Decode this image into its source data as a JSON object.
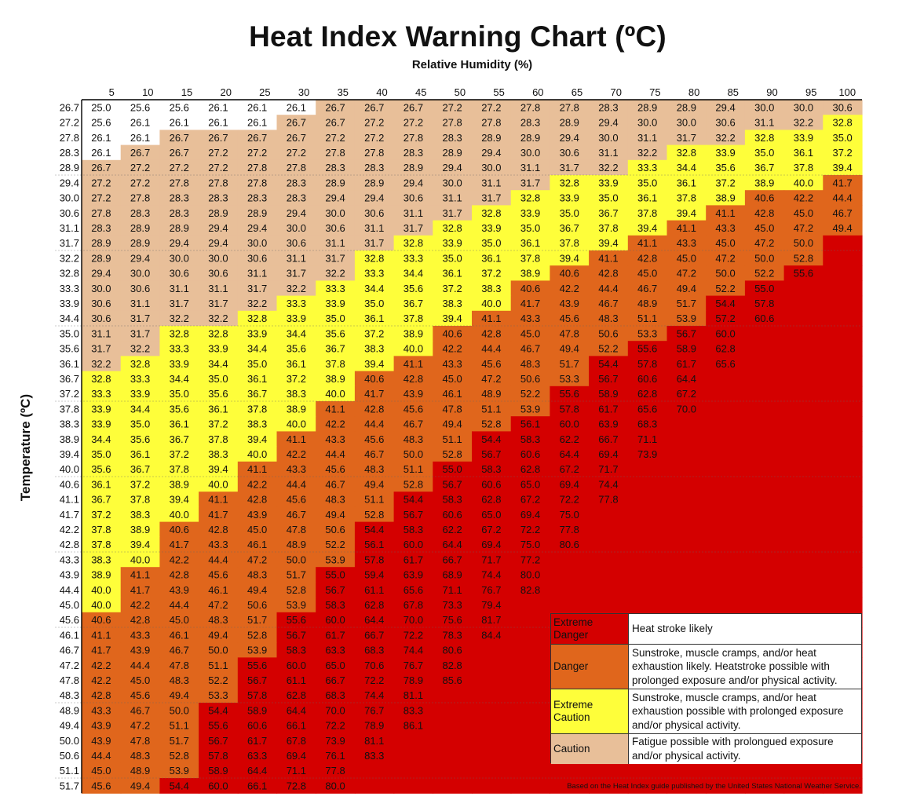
{
  "title": "Heat Index Warning Chart (ºC)",
  "chart_data": {
    "type": "heatmap",
    "title": "Heat Index Warning Chart (ºC)",
    "xlabel": "Relative Humidity (%)",
    "ylabel": "Temperature (ºC)",
    "x": [
      5,
      10,
      15,
      20,
      25,
      30,
      35,
      40,
      45,
      50,
      55,
      60,
      65,
      70,
      75,
      80,
      85,
      90,
      95,
      100
    ],
    "y": [
      26.7,
      27.2,
      27.8,
      28.3,
      28.9,
      29.4,
      30.0,
      30.6,
      31.1,
      31.7,
      32.2,
      32.8,
      33.3,
      33.9,
      34.4,
      35.0,
      35.6,
      36.1,
      36.7,
      37.2,
      37.8,
      38.3,
      38.9,
      39.4,
      40.0,
      40.6,
      41.1,
      41.7,
      42.2,
      42.8,
      43.3,
      43.9,
      44.4,
      45.0,
      45.6,
      46.1,
      46.7,
      47.2,
      47.8,
      48.3,
      48.9,
      49.4,
      50.0,
      50.6,
      51.1,
      51.7
    ],
    "values": [
      [
        "25.0",
        "25.6",
        "25.6",
        "26.1",
        "26.1",
        "26.1",
        "26.7",
        "26.7",
        "26.7",
        "27.2",
        "27.2",
        "27.8",
        "27.8",
        "28.3",
        "28.9",
        "28.9",
        "29.4",
        "30.0",
        "30.0",
        "30.6"
      ],
      [
        "25.6",
        "26.1",
        "26.1",
        "26.1",
        "26.1",
        "26.7",
        "26.7",
        "27.2",
        "27.2",
        "27.8",
        "27.8",
        "28.3",
        "28.9",
        "29.4",
        "30.0",
        "30.0",
        "30.6",
        "31.1",
        "32.2",
        "32.8"
      ],
      [
        "26.1",
        "26.1",
        "26.7",
        "26.7",
        "26.7",
        "26.7",
        "27.2",
        "27.2",
        "27.8",
        "28.3",
        "28.9",
        "28.9",
        "29.4",
        "30.0",
        "31.1",
        "31.7",
        "32.2",
        "32.8",
        "33.9",
        "35.0"
      ],
      [
        "26.1",
        "26.7",
        "26.7",
        "27.2",
        "27.2",
        "27.2",
        "27.8",
        "27.8",
        "28.3",
        "28.9",
        "29.4",
        "30.0",
        "30.6",
        "31.1",
        "32.2",
        "32.8",
        "33.9",
        "35.0",
        "36.1",
        "37.2"
      ],
      [
        "26.7",
        "27.2",
        "27.2",
        "27.2",
        "27.8",
        "27.8",
        "28.3",
        "28.3",
        "28.9",
        "29.4",
        "30.0",
        "31.1",
        "31.7",
        "32.2",
        "33.3",
        "34.4",
        "35.6",
        "36.7",
        "37.8",
        "39.4"
      ],
      [
        "27.2",
        "27.2",
        "27.8",
        "27.8",
        "27.8",
        "28.3",
        "28.9",
        "28.9",
        "29.4",
        "30.0",
        "31.1",
        "31.7",
        "32.8",
        "33.9",
        "35.0",
        "36.1",
        "37.2",
        "38.9",
        "40.0",
        "41.7"
      ],
      [
        "27.2",
        "27.8",
        "28.3",
        "28.3",
        "28.3",
        "28.3",
        "29.4",
        "29.4",
        "30.6",
        "31.1",
        "31.7",
        "32.8",
        "33.9",
        "35.0",
        "36.1",
        "37.8",
        "38.9",
        "40.6",
        "42.2",
        "44.4"
      ],
      [
        "27.8",
        "28.3",
        "28.3",
        "28.9",
        "28.9",
        "29.4",
        "30.0",
        "30.6",
        "31.1",
        "31.7",
        "32.8",
        "33.9",
        "35.0",
        "36.7",
        "37.8",
        "39.4",
        "41.1",
        "42.8",
        "45.0",
        "46.7"
      ],
      [
        "28.3",
        "28.9",
        "28.9",
        "29.4",
        "29.4",
        "30.0",
        "30.6",
        "31.1",
        "31.7",
        "32.8",
        "33.9",
        "35.0",
        "36.7",
        "37.8",
        "39.4",
        "41.1",
        "43.3",
        "45.0",
        "47.2",
        "49.4"
      ],
      [
        "28.9",
        "28.9",
        "29.4",
        "29.4",
        "30.0",
        "30.6",
        "31.1",
        "31.7",
        "32.8",
        "33.9",
        "35.0",
        "36.1",
        "37.8",
        "39.4",
        "41.1",
        "43.3",
        "45.0",
        "47.2",
        "50.0",
        ""
      ],
      [
        "28.9",
        "29.4",
        "30.0",
        "30.0",
        "30.6",
        "31.1",
        "31.7",
        "32.8",
        "33.3",
        "35.0",
        "36.1",
        "37.8",
        "39.4",
        "41.1",
        "42.8",
        "45.0",
        "47.2",
        "50.0",
        "52.8",
        ""
      ],
      [
        "29.4",
        "30.0",
        "30.6",
        "30.6",
        "31.1",
        "31.7",
        "32.2",
        "33.3",
        "34.4",
        "36.1",
        "37.2",
        "38.9",
        "40.6",
        "42.8",
        "45.0",
        "47.2",
        "50.0",
        "52.2",
        "55.6",
        ""
      ],
      [
        "30.0",
        "30.6",
        "31.1",
        "31.1",
        "31.7",
        "32.2",
        "33.3",
        "34.4",
        "35.6",
        "37.2",
        "38.3",
        "40.6",
        "42.2",
        "44.4",
        "46.7",
        "49.4",
        "52.2",
        "55.0",
        "",
        ""
      ],
      [
        "30.6",
        "31.1",
        "31.7",
        "31.7",
        "32.2",
        "33.3",
        "33.9",
        "35.0",
        "36.7",
        "38.3",
        "40.0",
        "41.7",
        "43.9",
        "46.7",
        "48.9",
        "51.7",
        "54.4",
        "57.8",
        "",
        ""
      ],
      [
        "30.6",
        "31.7",
        "32.2",
        "32.2",
        "32.8",
        "33.9",
        "35.0",
        "36.1",
        "37.8",
        "39.4",
        "41.1",
        "43.3",
        "45.6",
        "48.3",
        "51.1",
        "53.9",
        "57.2",
        "60.6",
        "",
        ""
      ],
      [
        "31.1",
        "31.7",
        "32.8",
        "32.8",
        "33.9",
        "34.4",
        "35.6",
        "37.2",
        "38.9",
        "40.6",
        "42.8",
        "45.0",
        "47.8",
        "50.6",
        "53.3",
        "56.7",
        "60.0",
        "",
        "",
        ""
      ],
      [
        "31.7",
        "32.2",
        "33.3",
        "33.9",
        "34.4",
        "35.6",
        "36.7",
        "38.3",
        "40.0",
        "42.2",
        "44.4",
        "46.7",
        "49.4",
        "52.2",
        "55.6",
        "58.9",
        "62.8",
        "",
        "",
        ""
      ],
      [
        "32.2",
        "32.8",
        "33.9",
        "34.4",
        "35.0",
        "36.1",
        "37.8",
        "39.4",
        "41.1",
        "43.3",
        "45.6",
        "48.3",
        "51.7",
        "54.4",
        "57.8",
        "61.7",
        "65.6",
        "",
        "",
        ""
      ],
      [
        "32.8",
        "33.3",
        "34.4",
        "35.0",
        "36.1",
        "37.2",
        "38.9",
        "40.6",
        "42.8",
        "45.0",
        "47.2",
        "50.6",
        "53.3",
        "56.7",
        "60.6",
        "64.4",
        "",
        "",
        "",
        ""
      ],
      [
        "33.3",
        "33.9",
        "35.0",
        "35.6",
        "36.7",
        "38.3",
        "40.0",
        "41.7",
        "43.9",
        "46.1",
        "48.9",
        "52.2",
        "55.6",
        "58.9",
        "62.8",
        "67.2",
        "",
        "",
        "",
        ""
      ],
      [
        "33.9",
        "34.4",
        "35.6",
        "36.1",
        "37.8",
        "38.9",
        "41.1",
        "42.8",
        "45.6",
        "47.8",
        "51.1",
        "53.9",
        "57.8",
        "61.7",
        "65.6",
        "70.0",
        "",
        "",
        "",
        ""
      ],
      [
        "33.9",
        "35.0",
        "36.1",
        "37.2",
        "38.3",
        "40.0",
        "42.2",
        "44.4",
        "46.7",
        "49.4",
        "52.8",
        "56.1",
        "60.0",
        "63.9",
        "68.3",
        "",
        "",
        "",
        "",
        ""
      ],
      [
        "34.4",
        "35.6",
        "36.7",
        "37.8",
        "39.4",
        "41.1",
        "43.3",
        "45.6",
        "48.3",
        "51.1",
        "54.4",
        "58.3",
        "62.2",
        "66.7",
        "71.1",
        "",
        "",
        "",
        "",
        ""
      ],
      [
        "35.0",
        "36.1",
        "37.2",
        "38.3",
        "40.0",
        "42.2",
        "44.4",
        "46.7",
        "50.0",
        "52.8",
        "56.7",
        "60.6",
        "64.4",
        "69.4",
        "73.9",
        "",
        "",
        "",
        "",
        ""
      ],
      [
        "35.6",
        "36.7",
        "37.8",
        "39.4",
        "41.1",
        "43.3",
        "45.6",
        "48.3",
        "51.1",
        "55.0",
        "58.3",
        "62.8",
        "67.2",
        "71.7",
        "",
        "",
        "",
        "",
        "",
        ""
      ],
      [
        "36.1",
        "37.2",
        "38.9",
        "40.0",
        "42.2",
        "44.4",
        "46.7",
        "49.4",
        "52.8",
        "56.7",
        "60.6",
        "65.0",
        "69.4",
        "74.4",
        "",
        "",
        "",
        "",
        "",
        ""
      ],
      [
        "36.7",
        "37.8",
        "39.4",
        "41.1",
        "42.8",
        "45.6",
        "48.3",
        "51.1",
        "54.4",
        "58.3",
        "62.8",
        "67.2",
        "72.2",
        "77.8",
        "",
        "",
        "",
        "",
        "",
        ""
      ],
      [
        "37.2",
        "38.3",
        "40.0",
        "41.7",
        "43.9",
        "46.7",
        "49.4",
        "52.8",
        "56.7",
        "60.6",
        "65.0",
        "69.4",
        "75.0",
        "",
        "",
        "",
        "",
        "",
        "",
        ""
      ],
      [
        "37.8",
        "38.9",
        "40.6",
        "42.8",
        "45.0",
        "47.8",
        "50.6",
        "54.4",
        "58.3",
        "62.2",
        "67.2",
        "72.2",
        "77.8",
        "",
        "",
        "",
        "",
        "",
        "",
        ""
      ],
      [
        "37.8",
        "39.4",
        "41.7",
        "43.3",
        "46.1",
        "48.9",
        "52.2",
        "56.1",
        "60.0",
        "64.4",
        "69.4",
        "75.0",
        "80.6",
        "",
        "",
        "",
        "",
        "",
        "",
        ""
      ],
      [
        "38.3",
        "40.0",
        "42.2",
        "44.4",
        "47.2",
        "50.0",
        "53.9",
        "57.8",
        "61.7",
        "66.7",
        "71.7",
        "77.2",
        "",
        "",
        "",
        "",
        "",
        "",
        "",
        ""
      ],
      [
        "38.9",
        "41.1",
        "42.8",
        "45.6",
        "48.3",
        "51.7",
        "55.0",
        "59.4",
        "63.9",
        "68.9",
        "74.4",
        "80.0",
        "",
        "",
        "",
        "",
        "",
        "",
        "",
        ""
      ],
      [
        "40.0",
        "41.7",
        "43.9",
        "46.1",
        "49.4",
        "52.8",
        "56.7",
        "61.1",
        "65.6",
        "71.1",
        "76.7",
        "82.8",
        "",
        "",
        "",
        "",
        "",
        "",
        "",
        ""
      ],
      [
        "40.0",
        "42.2",
        "44.4",
        "47.2",
        "50.6",
        "53.9",
        "58.3",
        "62.8",
        "67.8",
        "73.3",
        "79.4",
        "",
        "",
        "",
        "",
        "",
        "",
        "",
        "",
        ""
      ],
      [
        "40.6",
        "42.8",
        "45.0",
        "48.3",
        "51.7",
        "55.6",
        "60.0",
        "64.4",
        "70.0",
        "75.6",
        "81.7",
        "",
        "",
        "",
        "",
        "",
        "",
        "",
        "",
        ""
      ],
      [
        "41.1",
        "43.3",
        "46.1",
        "49.4",
        "52.8",
        "56.7",
        "61.7",
        "66.7",
        "72.2",
        "78.3",
        "84.4",
        "",
        "",
        "",
        "",
        "",
        "",
        "",
        "",
        ""
      ],
      [
        "41.7",
        "43.9",
        "46.7",
        "50.0",
        "53.9",
        "58.3",
        "63.3",
        "68.3",
        "74.4",
        "80.6",
        "",
        "",
        "",
        "",
        "",
        "",
        "",
        "",
        "",
        ""
      ],
      [
        "42.2",
        "44.4",
        "47.8",
        "51.1",
        "55.6",
        "60.0",
        "65.0",
        "70.6",
        "76.7",
        "82.8",
        "",
        "",
        "",
        "",
        "",
        "",
        "",
        "",
        "",
        ""
      ],
      [
        "42.2",
        "45.0",
        "48.3",
        "52.2",
        "56.7",
        "61.1",
        "66.7",
        "72.2",
        "78.9",
        "85.6",
        "",
        "",
        "",
        "",
        "",
        "",
        "",
        "",
        "",
        ""
      ],
      [
        "42.8",
        "45.6",
        "49.4",
        "53.3",
        "57.8",
        "62.8",
        "68.3",
        "74.4",
        "81.1",
        "",
        "",
        "",
        "",
        "",
        "",
        "",
        "",
        "",
        "",
        ""
      ],
      [
        "43.3",
        "46.7",
        "50.0",
        "54.4",
        "58.9",
        "64.4",
        "70.0",
        "76.7",
        "83.3",
        "",
        "",
        "",
        "",
        "",
        "",
        "",
        "",
        "",
        "",
        ""
      ],
      [
        "43.9",
        "47.2",
        "51.1",
        "55.6",
        "60.6",
        "66.1",
        "72.2",
        "78.9",
        "86.1",
        "",
        "",
        "",
        "",
        "",
        "",
        "",
        "",
        "",
        "",
        ""
      ],
      [
        "43.9",
        "47.8",
        "51.7",
        "56.7",
        "61.7",
        "67.8",
        "73.9",
        "81.1",
        "",
        "",
        "",
        "",
        "",
        "",
        "",
        "",
        "",
        "",
        "",
        ""
      ],
      [
        "44.4",
        "48.3",
        "52.8",
        "57.8",
        "63.3",
        "69.4",
        "76.1",
        "83.3",
        "",
        "",
        "",
        "",
        "",
        "",
        "",
        "",
        "",
        "",
        "",
        ""
      ],
      [
        "45.0",
        "48.9",
        "53.9",
        "58.9",
        "64.4",
        "71.1",
        "77.8",
        "",
        "",
        "",
        "",
        "",
        "",
        "",
        "",
        "",
        "",
        "",
        "",
        ""
      ],
      [
        "45.6",
        "49.4",
        "54.4",
        "60.0",
        "66.1",
        "72.8",
        "80.0",
        "",
        "",
        "",
        "",
        "",
        "",
        "",
        "",
        "",
        "",
        "",
        "",
        ""
      ]
    ],
    "categories": [
      {
        "name": "Extreme Danger",
        "min": 54.4,
        "color": "#d40000",
        "description": "Heat stroke likely"
      },
      {
        "name": "Danger",
        "min": 40.6,
        "color": "#e0661c",
        "description": "Sunstroke, muscle cramps, and/or heat exhaustion likely. Heatstroke possible with prolonged exposure and/or physical activity."
      },
      {
        "name": "Extreme Caution",
        "min": 32.8,
        "color": "#fefe3a",
        "description": "Sunstroke, muscle cramps, and/or heat exhaustion possible with prolonged exposure and/or physical activity."
      },
      {
        "name": "Caution",
        "min": 26.7,
        "color": "#e8bf99",
        "description": "Fatigue possible with prolongued exposure and/or physical activity."
      },
      {
        "name": "",
        "min": 0,
        "color": "#ffffff",
        "description": ""
      }
    ],
    "empty_color": "#d40000"
  },
  "legend": [
    {
      "label": "Extreme Danger",
      "description": "Heat stroke likely",
      "color": "#d40000"
    },
    {
      "label": "Danger",
      "description": "Sunstroke, muscle cramps, and/or heat exhaustion likely. Heatstroke possible with prolonged exposure and/or physical activity.",
      "color": "#e0661c"
    },
    {
      "label": "Extreme Caution",
      "description": "Sunstroke, muscle cramps, and/or heat exhaustion possible with prolonged exposure and/or physical activity.",
      "color": "#fefe3a"
    },
    {
      "label": "Caution",
      "description": "Fatigue possible with prolongued exposure and/or physical activity.",
      "color": "#e8bf99"
    }
  ],
  "source_note": "Based on the Heat Index guide published by the United States National Weather Service."
}
